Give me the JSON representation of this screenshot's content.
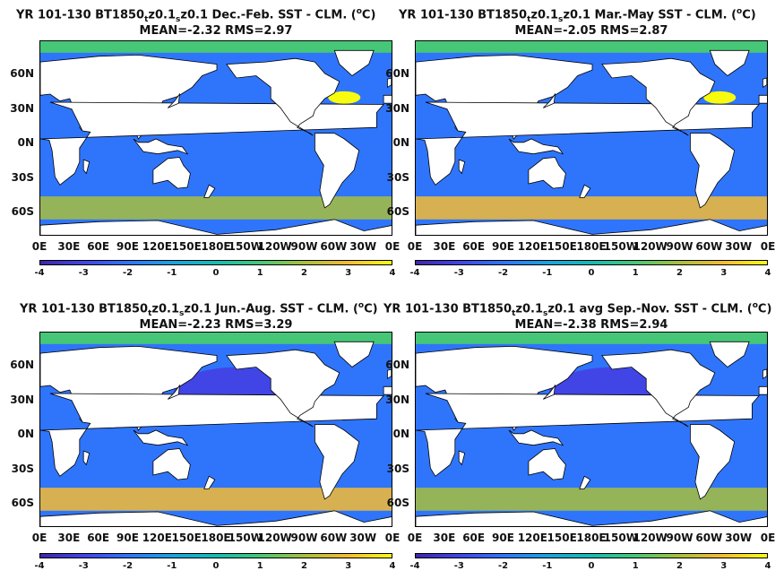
{
  "chart_data": [
    {
      "type": "heatmap",
      "title_parts": [
        "YR 101-130 BT1850",
        "t",
        "z0.1",
        "s",
        "z0.1  Dec.-Feb. SST - CLM. (",
        "o",
        "C)"
      ],
      "stats": "MEAN=-2.32   RMS=2.97",
      "mean": -2.32,
      "rms": 2.97,
      "region_anomalies": {
        "north_atlantic_gulf_stream": 3.5,
        "southern_ocean_band": 2.0,
        "tropical_ocean": -2.5,
        "arctic": 0.5
      }
    },
    {
      "type": "heatmap",
      "title_parts": [
        "YR 101-130 BT1850",
        "t",
        "z0.1",
        "s",
        "z0.1 Mar.-May SST - CLM. (",
        "o",
        "C)"
      ],
      "stats": "MEAN=-2.05   RMS=2.87",
      "mean": -2.05,
      "rms": 2.87,
      "region_anomalies": {
        "north_atlantic_gulf_stream": 3.5,
        "southern_ocean_band": 2.5,
        "tropical_ocean": -2.5,
        "arctic": 0.5
      }
    },
    {
      "type": "heatmap",
      "title_parts": [
        "YR 101-130 BT1850",
        "t",
        "z0.1",
        "s",
        "z0.1 Jun.-Aug. SST - CLM. (",
        "o",
        "C)"
      ],
      "stats": "MEAN=-2.23   RMS=3.29",
      "mean": -2.23,
      "rms": 3.29,
      "region_anomalies": {
        "north_pacific": -3.5,
        "southern_ocean_band": 2.5,
        "tropical_ocean": -2.0,
        "arctic": 0.5
      }
    },
    {
      "type": "heatmap",
      "title_parts": [
        "YR 101-130 BT1850",
        "t",
        "z0.1",
        "s",
        "z0.1 avg Sep.-Nov. SST - CLM. (",
        "o",
        "C)"
      ],
      "stats": "MEAN=-2.38   RMS=2.94",
      "mean": -2.38,
      "rms": 2.94,
      "region_anomalies": {
        "north_pacific": -3.5,
        "southern_ocean_band": 1.5,
        "tropical_ocean": -2.5,
        "arctic": 0.5
      }
    }
  ],
  "axes": {
    "ylabels": [
      "60N",
      "30N",
      "0N",
      "30S",
      "60S"
    ],
    "ylabel_values": [
      60,
      30,
      0,
      -30,
      -60
    ],
    "xlabels": [
      "0E",
      "30E",
      "60E",
      "90E",
      "120E",
      "150E",
      "180E",
      "150W",
      "120W",
      "90W",
      "60W",
      "30W",
      "0E"
    ],
    "xlabel_values": [
      0,
      30,
      60,
      90,
      120,
      150,
      180,
      210,
      240,
      270,
      300,
      330,
      360
    ],
    "lat_range": [
      -80,
      90
    ],
    "lon_range": [
      0,
      360
    ]
  },
  "colorbar": {
    "ticks": [
      "-4",
      "-3",
      "-2",
      "-1",
      "0",
      "1",
      "2",
      "3",
      "4"
    ],
    "range": [
      -4,
      4
    ],
    "colormap": "parula",
    "colors": [
      "#3e26a8",
      "#4145e6",
      "#2f75fc",
      "#1aa2e0",
      "#13bcb3",
      "#45c777",
      "#a7bf3d",
      "#f4bb33",
      "#f9fb0e"
    ]
  }
}
